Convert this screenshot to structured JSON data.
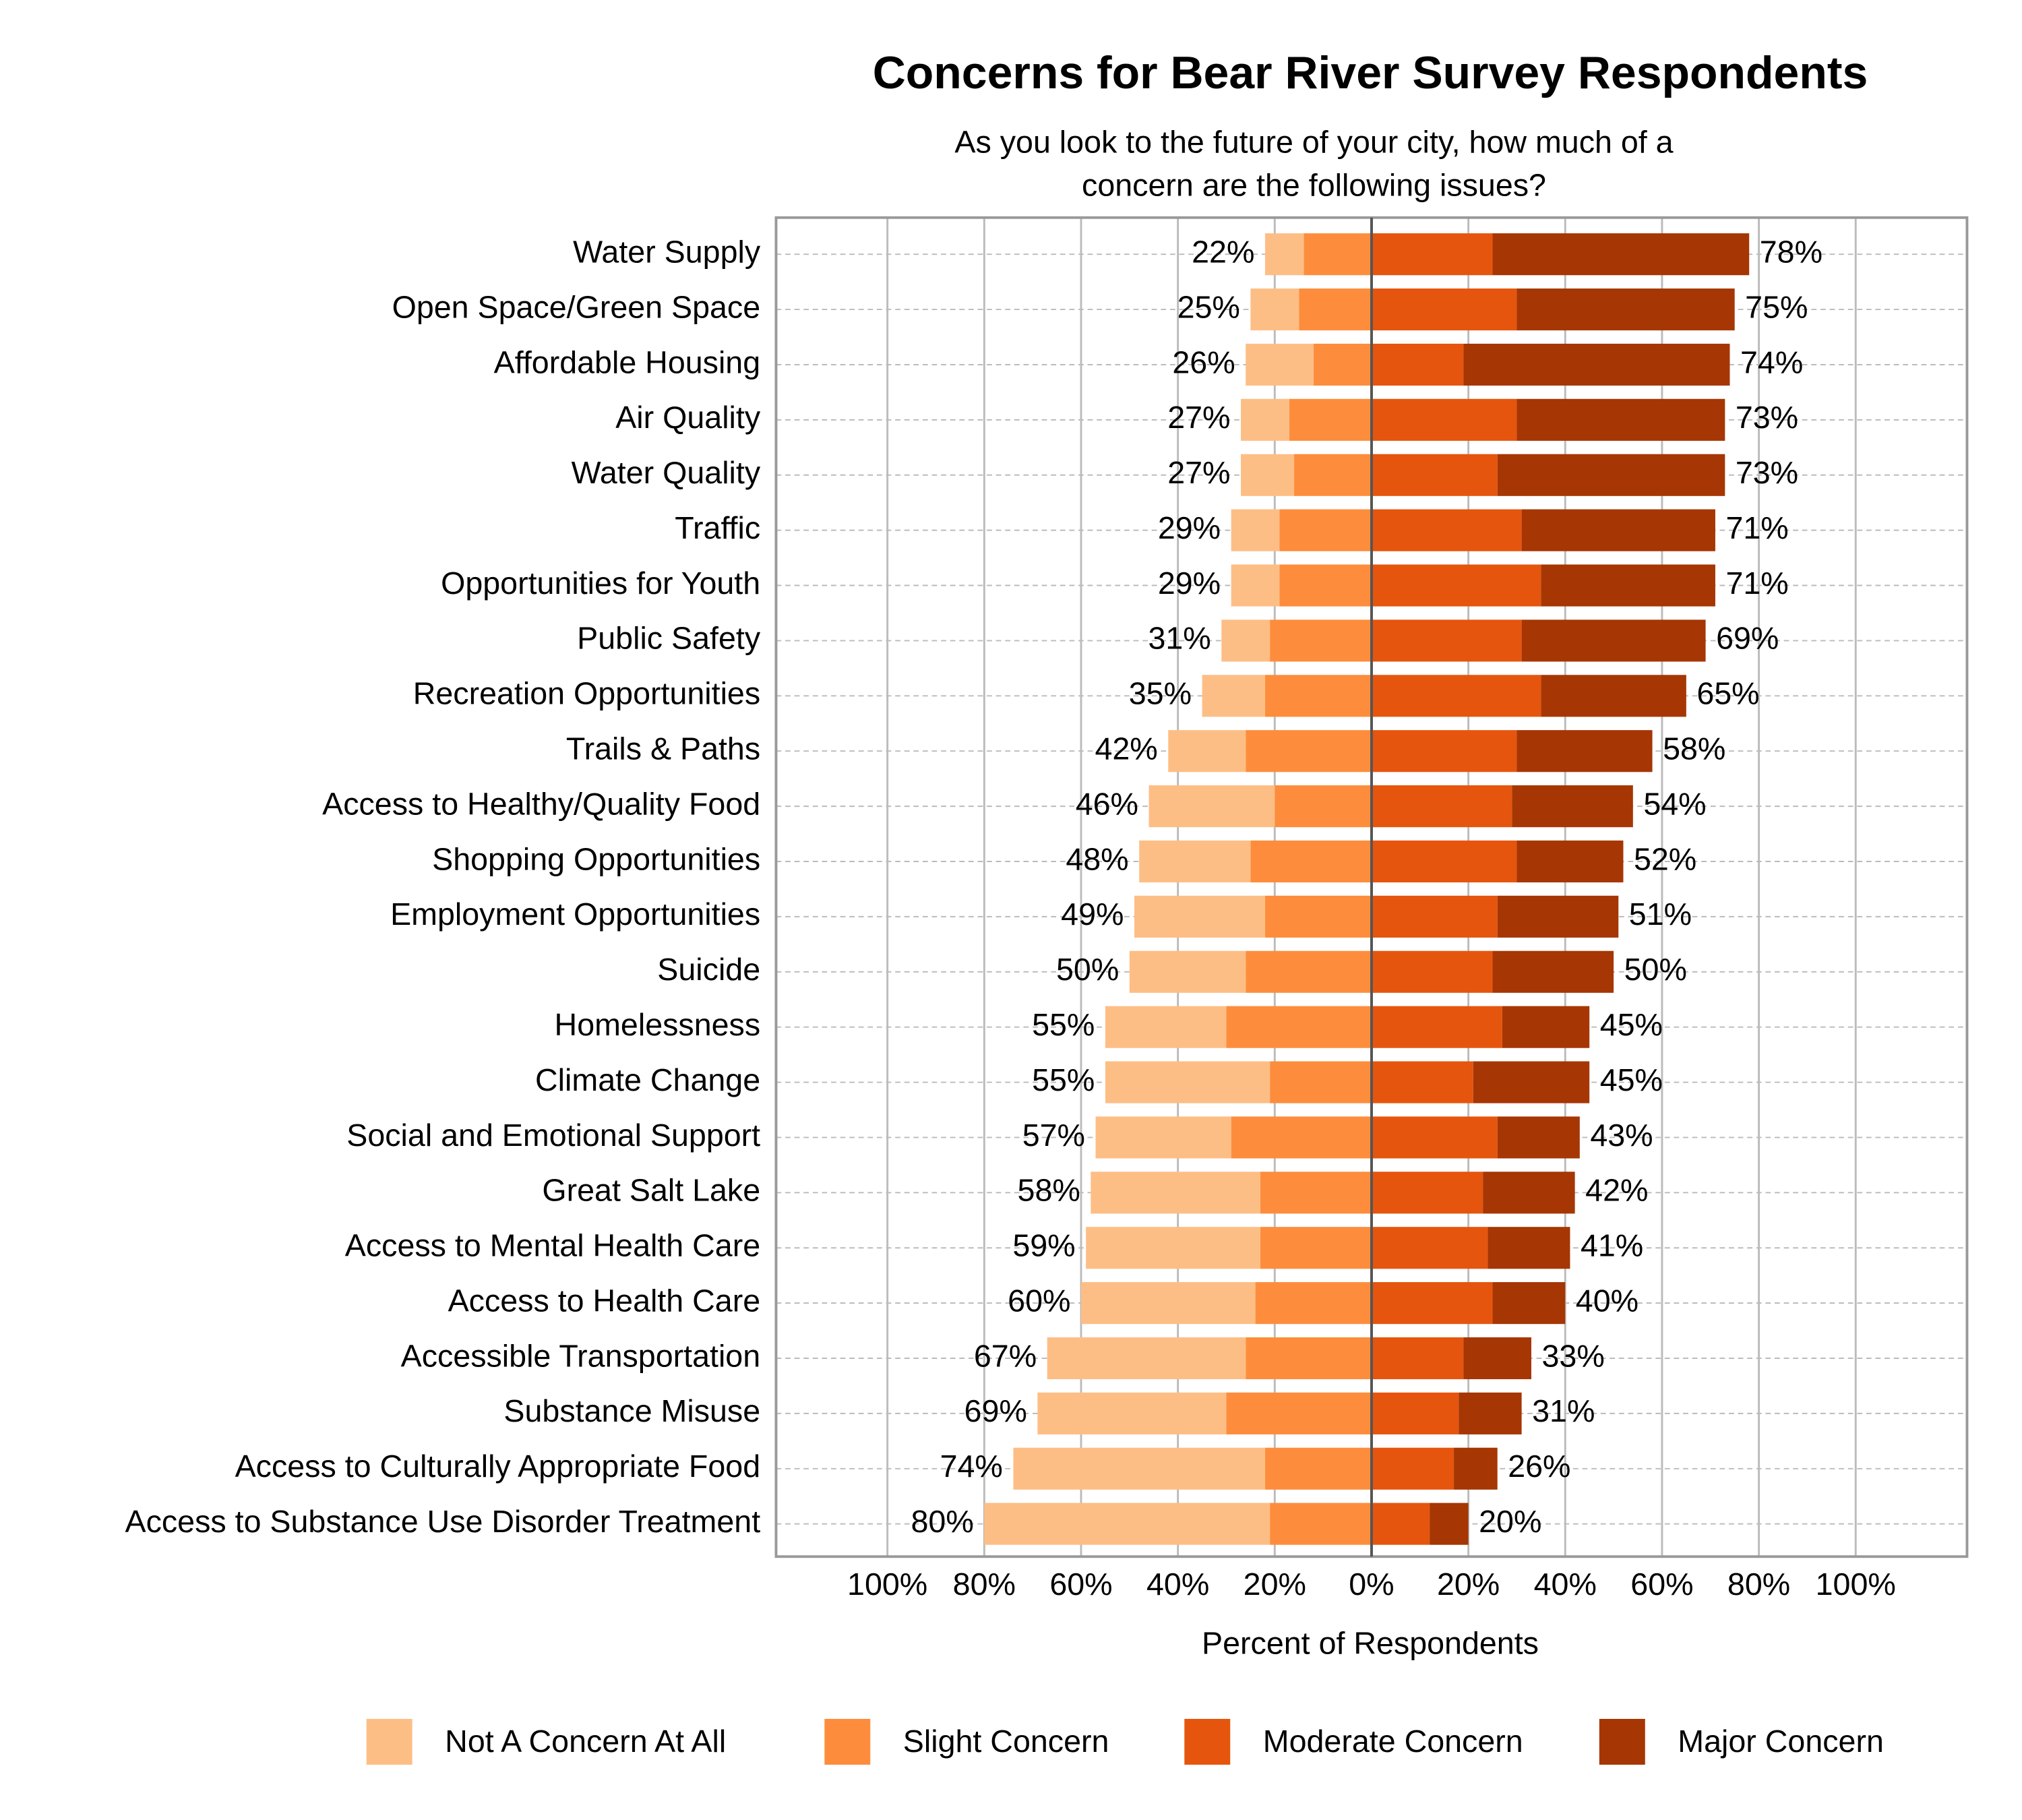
{
  "chart_data": {
    "type": "diverging_bar",
    "title": "Concerns for Bear River Survey Respondents",
    "subtitle": [
      "As you look to the future of your city, how much of a",
      "concern are the following issues?"
    ],
    "x_label": "Percent of Respondents",
    "categories": [
      "Water Supply",
      "Open Space/Green Space",
      "Affordable Housing",
      "Air Quality",
      "Water Quality",
      "Traffic",
      "Opportunities for Youth",
      "Public Safety",
      "Recreation Opportunities",
      "Trails & Paths",
      "Access to Healthy/Quality Food",
      "Shopping Opportunities",
      "Employment Opportunities",
      "Suicide",
      "Homelessness",
      "Climate Change",
      "Social and Emotional Support",
      "Great Salt Lake",
      "Access to Mental Health Care",
      "Access to Health Care",
      "Accessible Transportation",
      "Substance Misuse",
      "Access to Culturally Appropriate Food",
      "Access to Substance Use Disorder Treatment"
    ],
    "series": [
      {
        "name": "Not A Concern At All",
        "color": "#fdbe85",
        "values": [
          8,
          10,
          14,
          10,
          11,
          10,
          10,
          10,
          13,
          16,
          26,
          23,
          27,
          24,
          25,
          34,
          28,
          35,
          36,
          36,
          41,
          39,
          52,
          59
        ]
      },
      {
        "name": "Slight Concern",
        "color": "#fd8d3c",
        "values": [
          14,
          15,
          12,
          17,
          16,
          19,
          19,
          21,
          22,
          26,
          20,
          25,
          22,
          26,
          30,
          21,
          29,
          23,
          23,
          24,
          26,
          30,
          22,
          21
        ]
      },
      {
        "name": "Moderate Concern",
        "color": "#e6550d",
        "values": [
          25,
          30,
          19,
          30,
          26,
          31,
          35,
          31,
          35,
          30,
          29,
          30,
          26,
          25,
          27,
          21,
          26,
          23,
          24,
          25,
          19,
          18,
          17,
          12
        ]
      },
      {
        "name": "Major Concern",
        "color": "#a63603",
        "values": [
          53,
          45,
          55,
          43,
          47,
          40,
          36,
          38,
          30,
          28,
          25,
          22,
          25,
          25,
          18,
          24,
          17,
          19,
          17,
          15,
          14,
          13,
          9,
          8
        ]
      }
    ],
    "left_labels": [
      "22%",
      "25%",
      "26%",
      "27%",
      "27%",
      "29%",
      "29%",
      "31%",
      "35%",
      "42%",
      "46%",
      "48%",
      "49%",
      "50%",
      "55%",
      "55%",
      "57%",
      "58%",
      "59%",
      "60%",
      "67%",
      "69%",
      "74%",
      "80%"
    ],
    "right_labels": [
      "78%",
      "75%",
      "74%",
      "73%",
      "73%",
      "71%",
      "71%",
      "69%",
      "65%",
      "58%",
      "54%",
      "52%",
      "51%",
      "50%",
      "45%",
      "45%",
      "43%",
      "42%",
      "41%",
      "40%",
      "33%",
      "31%",
      "26%",
      "20%"
    ],
    "xlim": [
      -123,
      123
    ],
    "xticks": [
      {
        "value": -100,
        "label": "100%"
      },
      {
        "value": -80,
        "label": "80%"
      },
      {
        "value": -60,
        "label": "60%"
      },
      {
        "value": -40,
        "label": "40%"
      },
      {
        "value": -20,
        "label": "20%"
      },
      {
        "value": 0,
        "label": "0%"
      },
      {
        "value": 20,
        "label": "20%"
      },
      {
        "value": 40,
        "label": "40%"
      },
      {
        "value": 60,
        "label": "60%"
      },
      {
        "value": 80,
        "label": "80%"
      },
      {
        "value": 100,
        "label": "100%"
      }
    ],
    "grid": true
  }
}
